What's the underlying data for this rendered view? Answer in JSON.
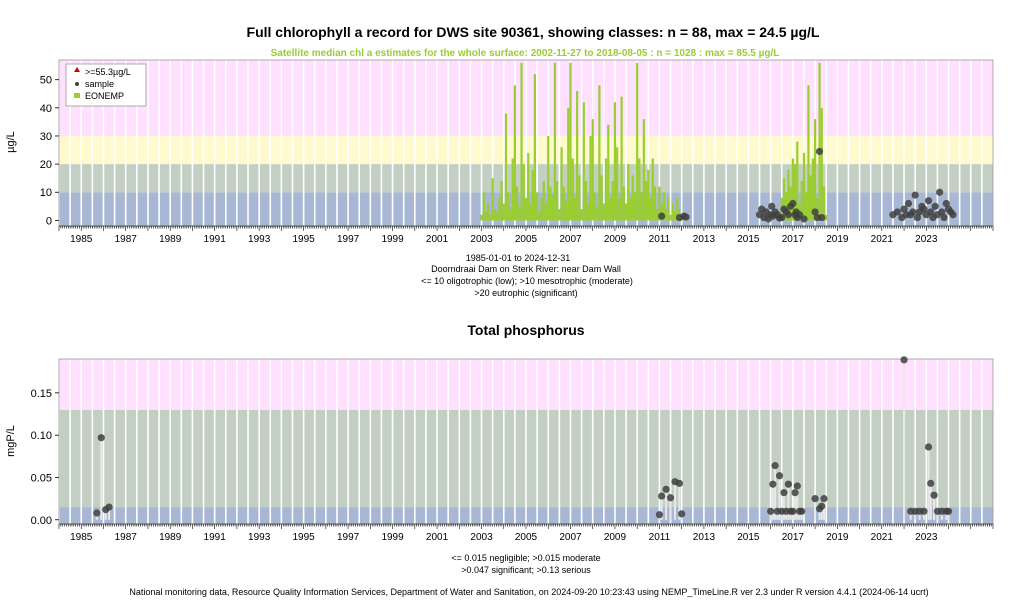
{
  "footer": "National monitoring data, Resource Quality Information Services, Department of Water and Sanitation, on 2024-09-20 10:23:43 using NEMP_TimeLine.R ver 2.3 under R version 4.4.1 (2024-06-14 ucrt)",
  "colors": {
    "pink": "#ffe0ff",
    "yellow": "#fffacd",
    "sage": "#c4cfc4",
    "blue": "#a8b8d4",
    "satellite": "#9acd32",
    "sample": "#404040",
    "stripe": "#ffffff",
    "frame": "#999999",
    "exceed": "#cc0000"
  },
  "chart_data": [
    {
      "type": "scatter",
      "title": "Full chlorophyll a record for DWS site 90361, showing classes: n = 88, max = 24.5 µg/L",
      "subtitle": "Satellite median chl a estimates for the whole surface: 2002-11-27 to 2018-08-05 : n = 1028 : max = 85.5 µg/L",
      "ylabel": "µg/L",
      "xlim": [
        1984,
        2026
      ],
      "ylim": [
        -2,
        57
      ],
      "yticks": [
        0,
        10,
        20,
        30,
        40,
        50
      ],
      "xticks": [
        "1985",
        "1987",
        "1989",
        "1991",
        "1993",
        "1995",
        "1997",
        "1999",
        "2001",
        "2003",
        "2005",
        "2007",
        "2009",
        "2011",
        "2013",
        "2015",
        "2017",
        "2019",
        "2021",
        "2023"
      ],
      "class_bands": [
        {
          "from": -2,
          "to": 10,
          "color": "blue"
        },
        {
          "from": 10,
          "to": 20,
          "color": "sage"
        },
        {
          "from": 20,
          "to": 30,
          "color": "yellow"
        },
        {
          "from": 30,
          "to": 57,
          "color": "pink"
        }
      ],
      "legend": {
        "position": "top-left",
        "items": [
          {
            "label": ">=55.3µg/L",
            "symbol": "triangle",
            "color": "exceed"
          },
          {
            "label": "sample",
            "symbol": "dot",
            "color": "sample"
          },
          {
            "label": "EONEMP",
            "symbol": "square",
            "color": "satellite"
          }
        ]
      },
      "notes": [
        "1985-01-01 to 2024-12-31",
        "Doorndraai Dam on Sterk River: near Dam Wall",
        "<= 10 oligotrophic (low); >10 mesotrophic (moderate)",
        ">20 eutrophic (significant)"
      ],
      "satellite_series": {
        "name": "EONEMP",
        "x": [
          2003.0,
          2003.1,
          2003.2,
          2003.3,
          2003.4,
          2003.5,
          2003.6,
          2003.7,
          2003.8,
          2003.9,
          2004.0,
          2004.1,
          2004.2,
          2004.3,
          2004.4,
          2004.5,
          2004.6,
          2004.7,
          2004.8,
          2004.9,
          2005.0,
          2005.1,
          2005.2,
          2005.3,
          2005.4,
          2005.5,
          2005.6,
          2005.7,
          2005.8,
          2005.9,
          2006.0,
          2006.1,
          2006.2,
          2006.3,
          2006.4,
          2006.5,
          2006.6,
          2006.7,
          2006.8,
          2006.9,
          2007.0,
          2007.1,
          2007.2,
          2007.3,
          2007.4,
          2007.5,
          2007.6,
          2007.7,
          2007.8,
          2007.9,
          2008.0,
          2008.1,
          2008.2,
          2008.3,
          2008.4,
          2008.5,
          2008.6,
          2008.7,
          2008.8,
          2008.9,
          2009.0,
          2009.1,
          2009.2,
          2009.3,
          2009.4,
          2009.5,
          2009.6,
          2009.7,
          2009.8,
          2009.9,
          2010.0,
          2010.1,
          2010.2,
          2010.3,
          2010.4,
          2010.5,
          2010.6,
          2010.7,
          2010.8,
          2010.9,
          2011.0,
          2011.1,
          2011.2,
          2011.3,
          2011.4,
          2011.5,
          2011.6,
          2011.7,
          2011.8,
          2011.9,
          2012.0,
          2012.1,
          2016.4,
          2016.5,
          2016.6,
          2016.7,
          2016.8,
          2016.9,
          2017.0,
          2017.1,
          2017.2,
          2017.3,
          2017.4,
          2017.5,
          2017.6,
          2017.7,
          2017.8,
          2017.9,
          2018.0,
          2018.1,
          2018.2,
          2018.3,
          2018.4,
          2018.5
        ],
        "y": [
          2,
          10,
          3,
          6,
          2,
          15,
          4,
          3,
          8,
          14,
          6,
          38,
          10,
          4,
          22,
          48,
          12,
          5,
          56,
          20,
          8,
          24,
          6,
          18,
          52,
          10,
          3,
          8,
          14,
          6,
          30,
          12,
          9,
          56,
          14,
          4,
          26,
          12,
          7,
          40,
          56,
          22,
          8,
          46,
          16,
          4,
          42,
          14,
          6,
          30,
          36,
          10,
          5,
          48,
          16,
          6,
          22,
          34,
          8,
          14,
          42,
          26,
          8,
          44,
          12,
          6,
          20,
          8,
          16,
          10,
          56,
          22,
          10,
          36,
          14,
          18,
          8,
          22,
          12,
          4,
          12,
          6,
          10,
          4,
          8,
          2,
          6,
          3,
          8,
          4,
          2,
          1,
          2,
          8,
          15,
          10,
          18,
          12,
          22,
          20,
          28,
          6,
          14,
          24,
          10,
          48,
          16,
          22,
          36,
          8,
          56,
          40,
          12,
          2
        ]
      },
      "samples": {
        "name": "sample",
        "x": [
          2011.1,
          2011.9,
          2012.1,
          2012.2,
          2015.5,
          2015.6,
          2015.7,
          2015.8,
          2015.9,
          2016.0,
          2016.05,
          2016.1,
          2016.2,
          2016.3,
          2016.4,
          2016.5,
          2016.6,
          2016.7,
          2016.8,
          2016.9,
          2017.0,
          2017.1,
          2017.15,
          2017.2,
          2017.3,
          2017.5,
          2018.0,
          2018.1,
          2018.2,
          2018.3,
          2021.5,
          2021.7,
          2021.9,
          2022.0,
          2022.1,
          2022.2,
          2022.3,
          2022.4,
          2022.5,
          2022.6,
          2022.7,
          2022.8,
          2022.9,
          2023.0,
          2023.1,
          2023.2,
          2023.3,
          2023.4,
          2023.5,
          2023.6,
          2023.7,
          2023.8,
          2023.9,
          2024.0,
          2024.1,
          2024.2
        ],
        "y": [
          1.5,
          1,
          1.5,
          1.2,
          2,
          4,
          1,
          3,
          0.5,
          2,
          5,
          1.5,
          3,
          2,
          0.8,
          1,
          4,
          3,
          2,
          5,
          6,
          2,
          3,
          1,
          2,
          0.5,
          3,
          1,
          24.5,
          1,
          2,
          3,
          1,
          4,
          2,
          6,
          2,
          3,
          9,
          1,
          3,
          5,
          4,
          2,
          7,
          3,
          1,
          5,
          2,
          10,
          3,
          1,
          6,
          4,
          3,
          2
        ]
      }
    },
    {
      "type": "scatter",
      "title": "Total phosphorus",
      "ylabel": "mgP/L",
      "xlim": [
        1984,
        2026
      ],
      "ylim": [
        -0.005,
        0.19
      ],
      "yticks": [
        0.0,
        0.05,
        0.1,
        0.15
      ],
      "ytick_labels": [
        "0.00",
        "0.05",
        "0.10",
        "0.15"
      ],
      "xticks": [
        "1985",
        "1987",
        "1989",
        "1991",
        "1993",
        "1995",
        "1997",
        "1999",
        "2001",
        "2003",
        "2005",
        "2007",
        "2009",
        "2011",
        "2013",
        "2015",
        "2017",
        "2019",
        "2021",
        "2023"
      ],
      "class_bands": [
        {
          "from": -0.005,
          "to": 0.015,
          "color": "blue"
        },
        {
          "from": 0.015,
          "to": 0.13,
          "color": "sage"
        },
        {
          "from": 0.13,
          "to": 0.19,
          "color": "pink"
        }
      ],
      "notes": [
        "<= 0.015 negligible; >0.015 moderate",
        ">0.047 significant; >0.13 serious"
      ],
      "samples": {
        "name": "sample",
        "x": [
          1985.7,
          1985.9,
          1986.1,
          1986.25,
          2011.0,
          2011.1,
          2011.3,
          2011.5,
          2011.7,
          2011.9,
          2012.0,
          2016.0,
          2016.1,
          2016.2,
          2016.3,
          2016.4,
          2016.5,
          2016.6,
          2016.7,
          2016.8,
          2016.9,
          2017.0,
          2017.1,
          2017.2,
          2017.3,
          2017.4,
          2018.0,
          2018.2,
          2018.3,
          2018.4,
          2022.0,
          2022.3,
          2022.5,
          2022.7,
          2022.9,
          2023.1,
          2023.2,
          2023.35,
          2023.5,
          2023.7,
          2023.9,
          2024.0
        ],
        "y": [
          0.008,
          0.097,
          0.012,
          0.015,
          0.006,
          0.028,
          0.036,
          0.026,
          0.045,
          0.043,
          0.007,
          0.01,
          0.042,
          0.064,
          0.01,
          0.052,
          0.01,
          0.032,
          0.01,
          0.042,
          0.01,
          0.01,
          0.032,
          0.04,
          0.01,
          0.01,
          0.025,
          0.013,
          0.016,
          0.025,
          0.189,
          0.01,
          0.01,
          0.01,
          0.01,
          0.086,
          0.043,
          0.029,
          0.01,
          0.01,
          0.01,
          0.01
        ]
      }
    }
  ]
}
